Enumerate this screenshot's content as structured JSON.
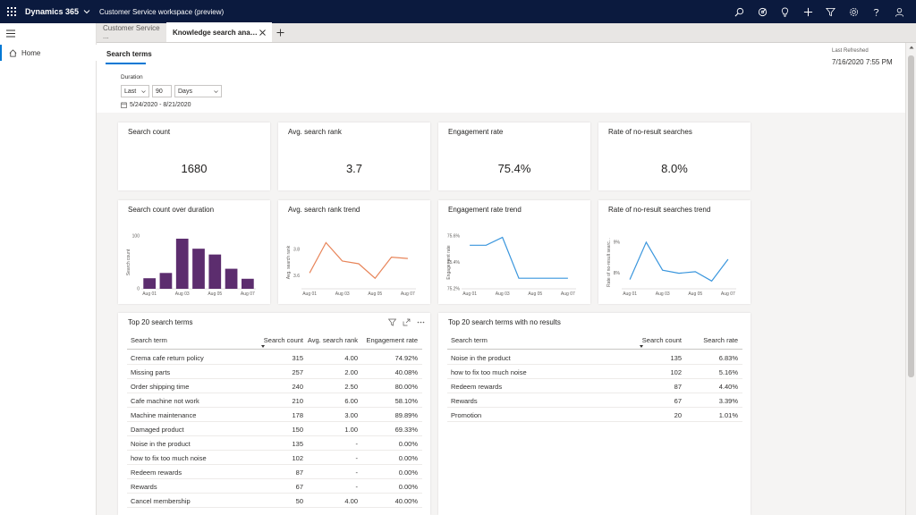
{
  "topbar": {
    "brand": "Dynamics 365",
    "app_name": "Customer Service workspace (preview)",
    "icons": [
      "search-icon",
      "goal-icon",
      "lightbulb-icon",
      "add-icon",
      "filter-icon",
      "settings-icon",
      "help-icon",
      "user-icon"
    ]
  },
  "nav": {
    "home_label": "Home"
  },
  "tabs": {
    "tab1": "Customer Service ...",
    "tab2": "Knowledge search analyti..."
  },
  "header": {
    "subtab": "Search terms",
    "last_refreshed_label": "Last Refreshed",
    "last_refreshed_value": "7/16/2020 7:55 PM",
    "duration_label": "Duration",
    "duration_mode": "Last",
    "duration_number": "90",
    "duration_unit": "Days",
    "date_range": "5/24/2020 - 8/21/2020"
  },
  "kpis": [
    {
      "title": "Search count",
      "value": "1680"
    },
    {
      "title": "Avg. search rank",
      "value": "3.7"
    },
    {
      "title": "Engagement rate",
      "value": "75.4%"
    },
    {
      "title": "Rate of no-result searches",
      "value": "8.0%"
    }
  ],
  "chart_data": [
    {
      "type": "bar",
      "title": "Search count over duration",
      "ylabel": "Search count",
      "x_ticks": [
        "Aug 01",
        "Aug 03",
        "Aug 05",
        "Aug 07"
      ],
      "y_ticks": [
        "100",
        "0"
      ],
      "ylim": [
        0,
        100
      ],
      "values": [
        20,
        30,
        95,
        76,
        65,
        38,
        19
      ],
      "color": "#5c2d6e"
    },
    {
      "type": "line",
      "title": "Avg. search rank trend",
      "ylabel": "Avg. search rank",
      "x_ticks": [
        "Aug 01",
        "Aug 03",
        "Aug 05",
        "Aug 07"
      ],
      "y_ticks": [
        "3.8",
        "3.6"
      ],
      "ylim": [
        3.5,
        3.9
      ],
      "values": [
        3.62,
        3.85,
        3.71,
        3.69,
        3.58,
        3.74,
        3.73
      ],
      "color": "#e8855a"
    },
    {
      "type": "line",
      "title": "Engagement rate trend",
      "ylabel": "Engagement rate",
      "x_ticks": [
        "Aug 01",
        "Aug 03",
        "Aug 05",
        "Aug 07"
      ],
      "y_ticks": [
        "75.6%",
        "75.4%",
        "75.2%"
      ],
      "ylim": [
        75.2,
        75.6
      ],
      "values": [
        75.53,
        75.53,
        75.59,
        75.28,
        75.28,
        75.28,
        75.28
      ],
      "color": "#3a96dd"
    },
    {
      "type": "line",
      "title": "Rate of no-result searches trend",
      "ylabel": "Rate of no-result searc...",
      "x_ticks": [
        "Aug 01",
        "Aug 03",
        "Aug 05",
        "Aug 07"
      ],
      "y_ticks": [
        "9%",
        "8%"
      ],
      "ylim": [
        7.5,
        9.2
      ],
      "values": [
        7.8,
        9.0,
        8.1,
        8.0,
        8.05,
        7.75,
        8.45
      ],
      "color": "#3a96dd"
    }
  ],
  "top20": {
    "title": "Top 20 search terms",
    "columns": [
      "Search term",
      "Search count",
      "Avg. search rank",
      "Engagement rate"
    ],
    "rows": [
      [
        "Crema cafe return policy",
        "315",
        "4.00",
        "74.92%"
      ],
      [
        "Missing parts",
        "257",
        "2.00",
        "40.08%"
      ],
      [
        "Order shipping time",
        "240",
        "2.50",
        "80.00%"
      ],
      [
        "Cafe machine not work",
        "210",
        "6.00",
        "58.10%"
      ],
      [
        "Machine maintenance",
        "178",
        "3.00",
        "89.89%"
      ],
      [
        "Damaged product",
        "150",
        "1.00",
        "69.33%"
      ],
      [
        "Noise in the product",
        "135",
        "-",
        "0.00%"
      ],
      [
        "how to fix too much noise",
        "102",
        "-",
        "0.00%"
      ],
      [
        "Redeem rewards",
        "87",
        "-",
        "0.00%"
      ],
      [
        "Rewards",
        "67",
        "-",
        "0.00%"
      ],
      [
        "Cancel membership",
        "50",
        "4.00",
        "40.00%"
      ]
    ]
  },
  "noresults": {
    "title": "Top 20 search terms with no results",
    "columns": [
      "Search term",
      "Search count",
      "Search rate"
    ],
    "rows": [
      [
        "Noise in the product",
        "135",
        "6.83%"
      ],
      [
        "how to fix too much noise",
        "102",
        "5.16%"
      ],
      [
        "Redeem rewards",
        "87",
        "4.40%"
      ],
      [
        "Rewards",
        "67",
        "3.39%"
      ],
      [
        "Promotion",
        "20",
        "1.01%"
      ]
    ]
  }
}
